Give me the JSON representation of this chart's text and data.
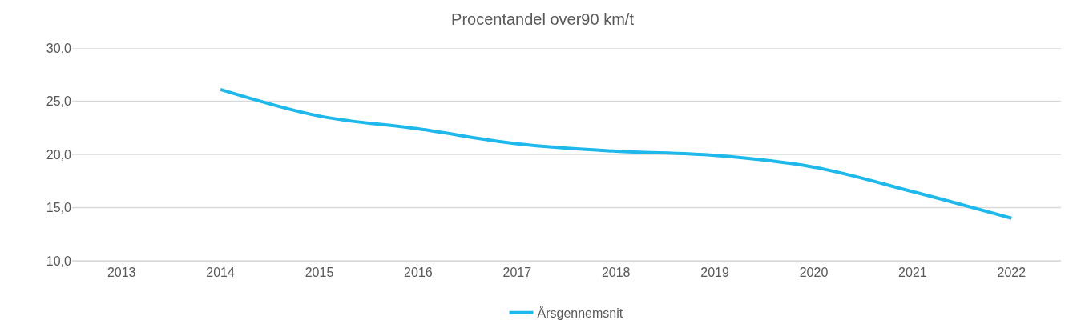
{
  "chart_data": {
    "type": "line",
    "title": "Procentandel over90 km/t",
    "categories": [
      "2013",
      "2014",
      "2015",
      "2016",
      "2017",
      "2018",
      "2019",
      "2020",
      "2021",
      "2022"
    ],
    "series": [
      {
        "name": "Årsgennemsnit",
        "color": "#1fb8eb",
        "values": [
          null,
          26.1,
          23.6,
          22.4,
          21.0,
          20.3,
          19.9,
          18.8,
          16.5,
          14.0
        ]
      }
    ],
    "ylim": [
      10,
      30
    ],
    "yticks": [
      {
        "value": 10,
        "label": "10,0"
      },
      {
        "value": 15,
        "label": "15,0"
      },
      {
        "value": 20,
        "label": "20,0"
      },
      {
        "value": 25,
        "label": "25,0"
      },
      {
        "value": 30,
        "label": "30,0"
      }
    ],
    "grid": "y",
    "legend": "bottom",
    "marker": "none",
    "line_style": "solid"
  }
}
